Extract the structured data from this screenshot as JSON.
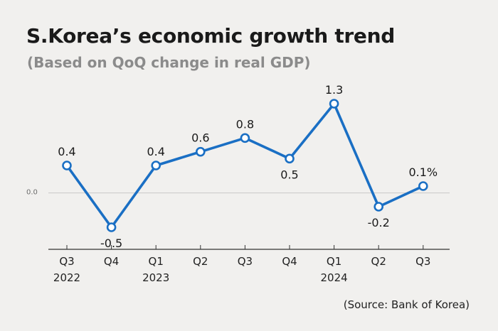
{
  "title": "S.Korea’s economic growth trend",
  "subtitle": "(Based on QoQ change in real GDP)",
  "source": "(Source: Bank of Korea)",
  "colors": {
    "line": "#1a6fc4",
    "marker_fill": "#ffffff",
    "background": "#f1f0ee",
    "zero_line": "#c8c8c8",
    "axis": "#333333"
  },
  "chart_data": {
    "type": "line",
    "categories": [
      "Q3",
      "Q4",
      "Q1",
      "Q2",
      "Q3",
      "Q4",
      "Q1",
      "Q2",
      "Q3"
    ],
    "year_labels": [
      "2022",
      "",
      "2023",
      "",
      "",
      "",
      "2024",
      "",
      ""
    ],
    "values": [
      0.4,
      -0.5,
      0.4,
      0.6,
      0.8,
      0.5,
      1.3,
      -0.2,
      0.1
    ],
    "data_labels": [
      "0.4",
      "-0.5",
      "0.4",
      "0.6",
      "0.8",
      "0.5",
      "1.3",
      "-0.2",
      "0.1%"
    ],
    "data_label_position": [
      "above",
      "below",
      "above",
      "above",
      "above",
      "below",
      "above",
      "below",
      "above"
    ],
    "zero_label": "0.0",
    "ylim": [
      -0.8,
      1.6
    ],
    "grid": false,
    "legend": "none"
  }
}
